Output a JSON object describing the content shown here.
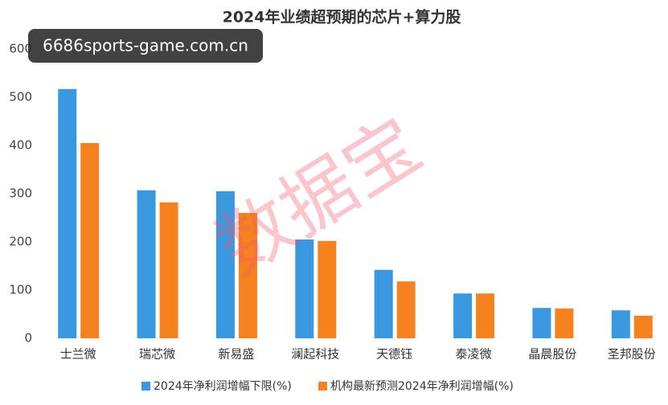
{
  "chart_data": {
    "type": "bar",
    "title": "2024年业绩超预期的芯片+算力股",
    "categories": [
      "士兰微",
      "瑞芯微",
      "新易盛",
      "澜起科技",
      "天德钰",
      "泰凌微",
      "晶晨股份",
      "圣邦股份"
    ],
    "series": [
      {
        "name": "2024年净利润增幅下限(%)",
        "color": "#3a98e0",
        "values": [
          517,
          307,
          305,
          205,
          142,
          93,
          63,
          58
        ]
      },
      {
        "name": "机构最新预测2024年净利润增幅(%)",
        "color": "#f5821f",
        "values": [
          405,
          282,
          260,
          202,
          118,
          93,
          62,
          47
        ]
      }
    ],
    "ylim": [
      0,
      600
    ],
    "yticks": [
      0,
      100,
      200,
      300,
      400,
      500,
      600
    ],
    "grid": false,
    "watermark": "数据宝",
    "overlay_label": "6686sports-game.com.cn"
  }
}
